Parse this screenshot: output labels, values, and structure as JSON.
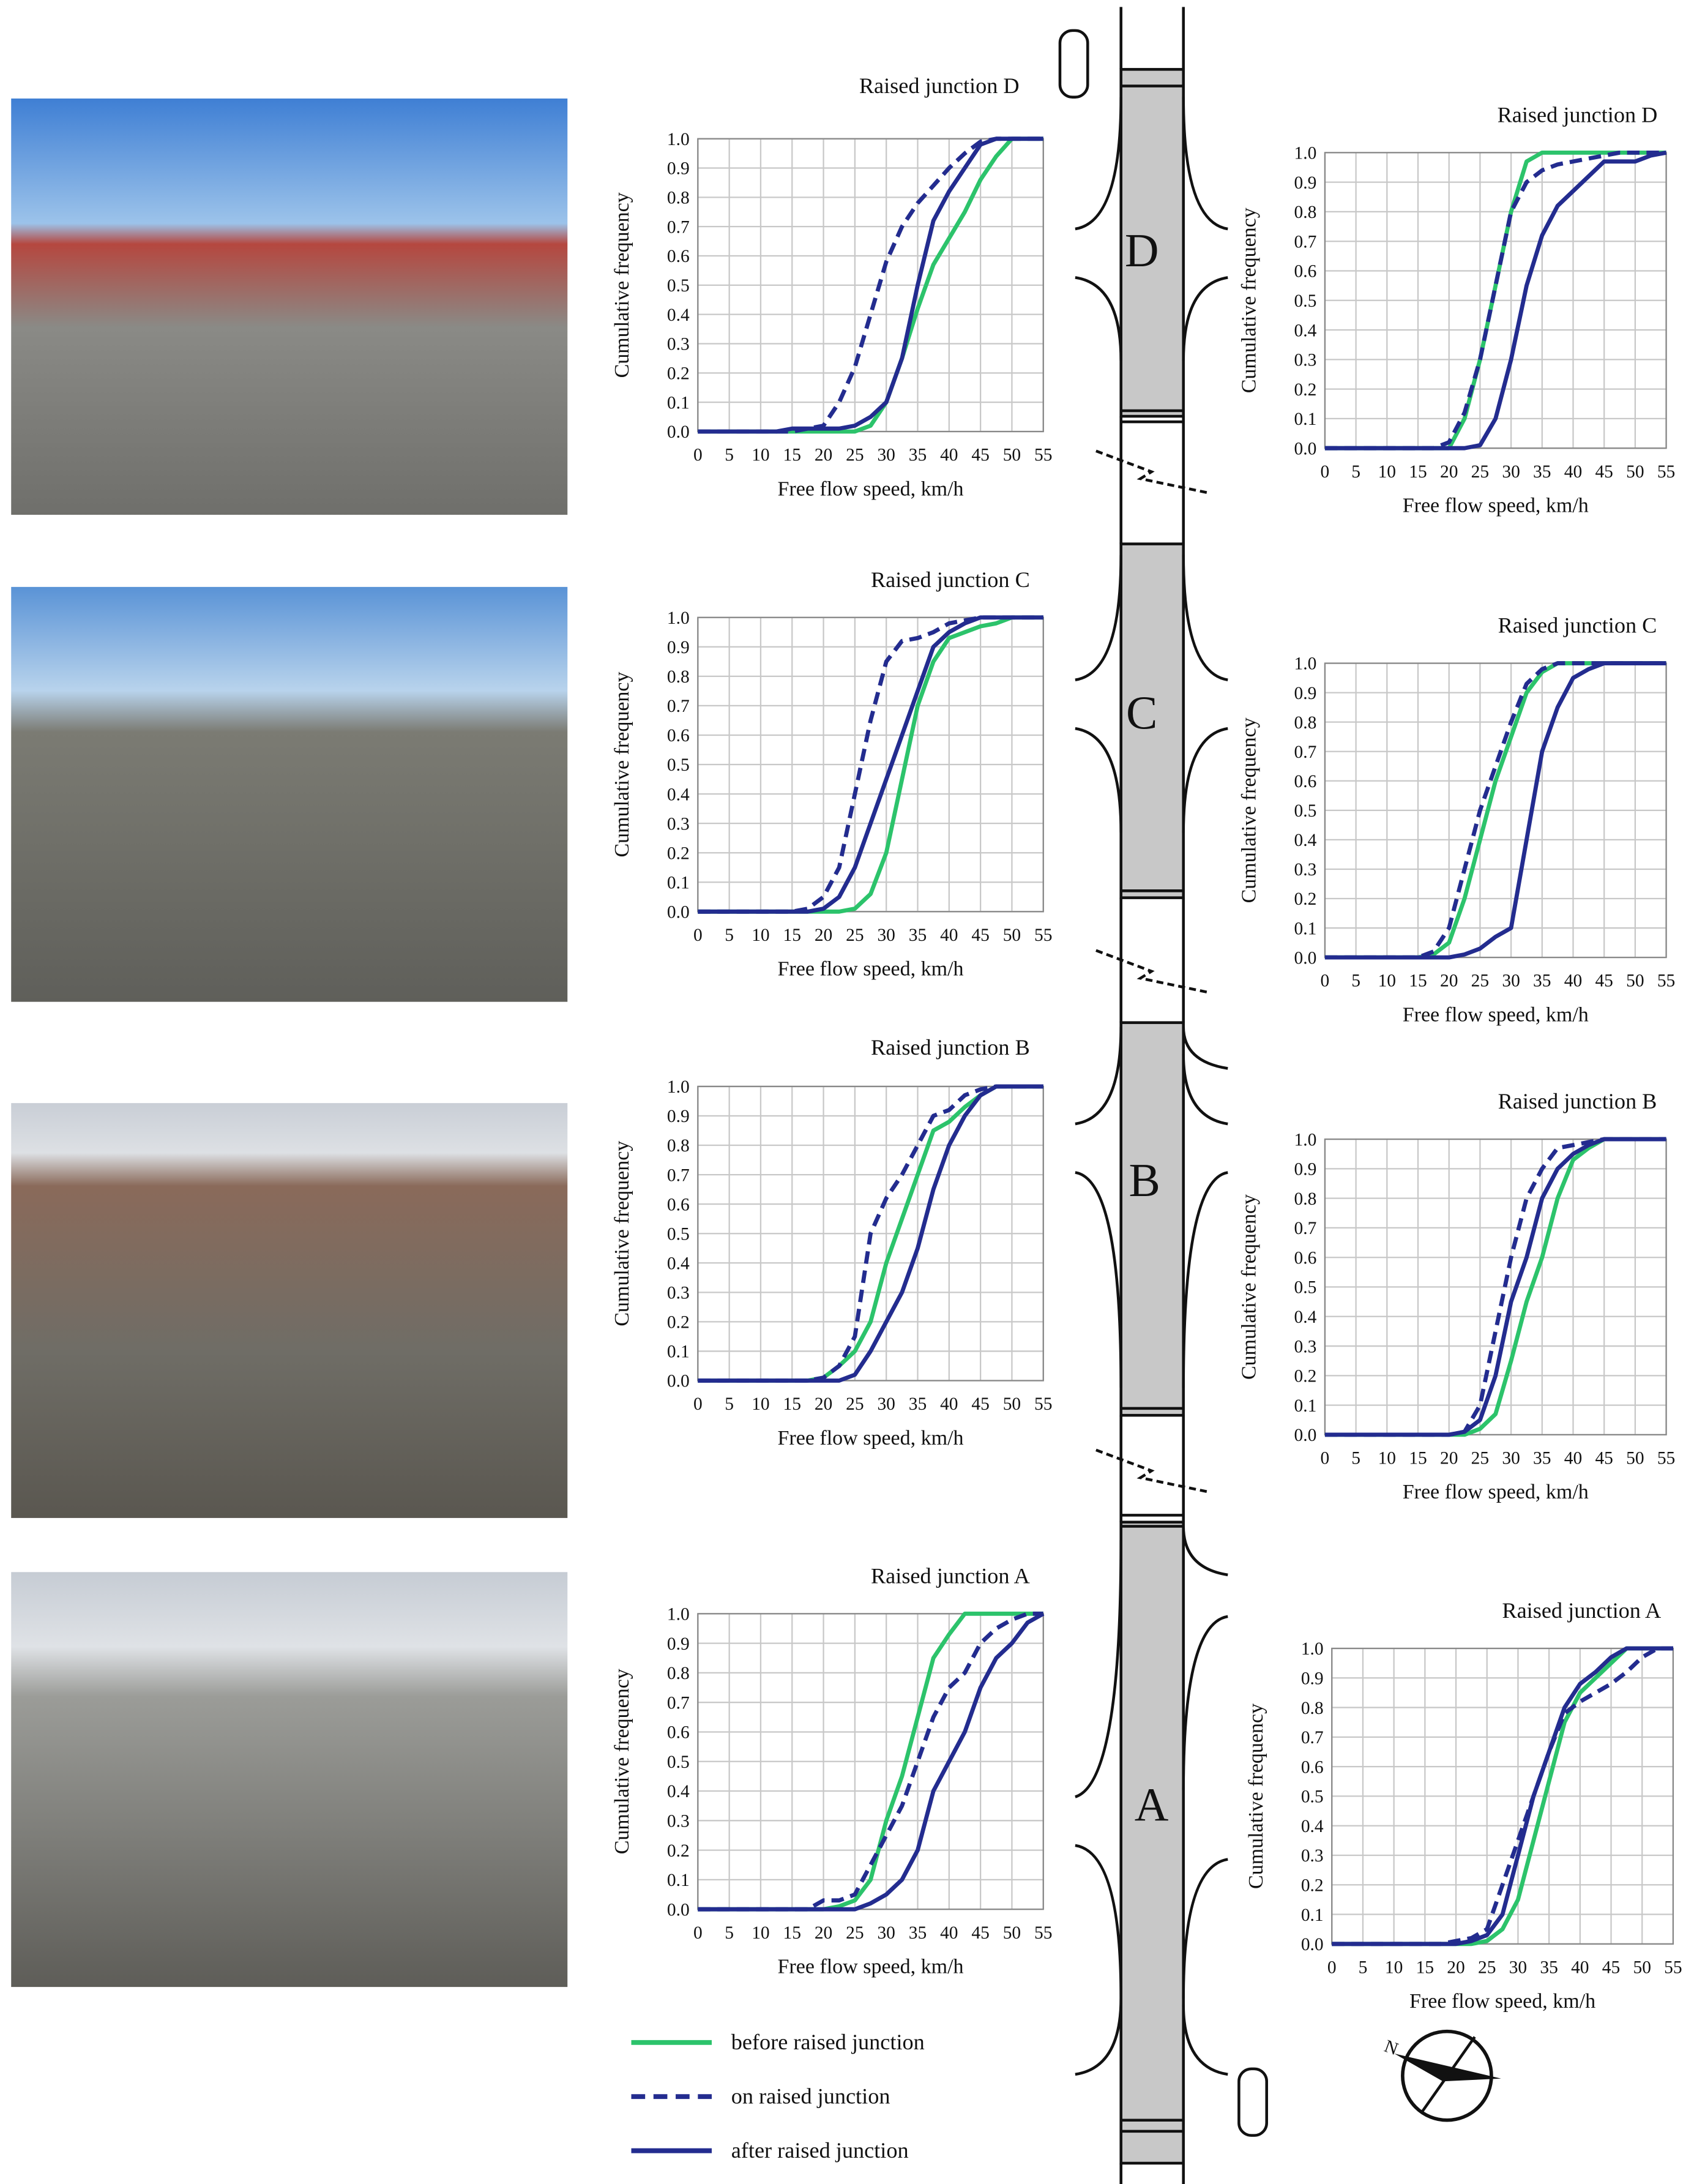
{
  "legend": {
    "entries": [
      {
        "name": "before raised junction",
        "color": "#2cc36b",
        "dash": false
      },
      {
        "name": "on raised junction",
        "color": "#232c8f",
        "dash": true
      },
      {
        "name": "after raised junction",
        "color": "#232c8f",
        "dash": false
      }
    ]
  },
  "road": {
    "sections": [
      "D",
      "C",
      "B",
      "A"
    ]
  },
  "compass": {
    "label": "N"
  },
  "chart_data": [
    {
      "type": "line",
      "title": "Raised junction D",
      "xlabel": "Free flow speed, km/h",
      "ylabel": "Cumulative frequency",
      "x": [
        0,
        2.5,
        5,
        7.5,
        10,
        12.5,
        15,
        17.5,
        20,
        22.5,
        25,
        27.5,
        30,
        32.5,
        35,
        37.5,
        40,
        42.5,
        45,
        47.5,
        50,
        52.5,
        55
      ],
      "series": [
        {
          "values": [
            0,
            0,
            0,
            0,
            0,
            0,
            0,
            0,
            0,
            0,
            0,
            0.02,
            0.1,
            0.25,
            0.42,
            0.57,
            0.66,
            0.75,
            0.86,
            0.94,
            1,
            1,
            1
          ]
        },
        {
          "values": [
            0,
            0,
            0,
            0,
            0,
            0,
            0,
            0.01,
            0.02,
            0.1,
            0.22,
            0.4,
            0.58,
            0.7,
            0.78,
            0.84,
            0.9,
            0.95,
            0.99,
            1,
            1,
            1,
            1
          ]
        },
        {
          "values": [
            0,
            0,
            0,
            0,
            0,
            0,
            0.01,
            0.01,
            0.01,
            0.01,
            0.02,
            0.05,
            0.1,
            0.25,
            0.5,
            0.72,
            0.82,
            0.9,
            0.98,
            1,
            1,
            1,
            1
          ]
        }
      ],
      "xlim": [
        0,
        55
      ],
      "ylim": [
        0,
        1
      ],
      "xticks": [
        0,
        5,
        10,
        15,
        20,
        25,
        30,
        35,
        40,
        45,
        50,
        55
      ],
      "yticks": [
        {
          "value": 0,
          "label": "0.0"
        },
        0.1,
        0.2,
        0.3,
        0.4,
        0.5,
        0.6,
        0.7,
        0.8,
        0.9,
        {
          "value": 1,
          "label": "1.0"
        }
      ],
      "grid": true
    },
    {
      "type": "line",
      "title": "Raised junction D",
      "xlabel": "Free flow speed, km/h",
      "ylabel": "Cumulative frequency",
      "x": [
        0,
        2.5,
        5,
        7.5,
        10,
        12.5,
        15,
        17.5,
        20,
        22.5,
        25,
        27.5,
        30,
        32.5,
        35,
        37.5,
        40,
        42.5,
        45,
        47.5,
        50,
        52.5,
        55
      ],
      "series": [
        {
          "values": [
            0,
            0,
            0,
            0,
            0,
            0,
            0,
            0,
            0,
            0.1,
            0.3,
            0.55,
            0.8,
            0.97,
            1,
            1,
            1,
            1,
            1,
            1,
            1,
            1,
            1
          ]
        },
        {
          "values": [
            0,
            0,
            0,
            0,
            0,
            0,
            0,
            0,
            0.02,
            0.12,
            0.3,
            0.55,
            0.8,
            0.9,
            0.94,
            0.96,
            0.97,
            0.98,
            0.99,
            1,
            1,
            1,
            1
          ]
        },
        {
          "values": [
            0,
            0,
            0,
            0,
            0,
            0,
            0,
            0,
            0,
            0,
            0.01,
            0.1,
            0.3,
            0.55,
            0.72,
            0.82,
            0.87,
            0.92,
            0.97,
            0.97,
            0.97,
            0.99,
            1
          ]
        }
      ],
      "xlim": [
        0,
        55
      ],
      "ylim": [
        0,
        1
      ],
      "xticks": [
        0,
        5,
        10,
        15,
        20,
        25,
        30,
        35,
        40,
        45,
        50,
        55
      ],
      "yticks": [
        {
          "value": 0,
          "label": "0.0"
        },
        0.1,
        0.2,
        0.3,
        0.4,
        0.5,
        0.6,
        0.7,
        0.8,
        0.9,
        {
          "value": 1,
          "label": "1.0"
        }
      ],
      "grid": true
    },
    {
      "type": "line",
      "title": "Raised junction C",
      "xlabel": "Free flow speed, km/h",
      "ylabel": "Cumulative frequency",
      "x": [
        0,
        2.5,
        5,
        7.5,
        10,
        12.5,
        15,
        17.5,
        20,
        22.5,
        25,
        27.5,
        30,
        32.5,
        35,
        37.5,
        40,
        42.5,
        45,
        47.5,
        50,
        52.5,
        55
      ],
      "series": [
        {
          "values": [
            0,
            0,
            0,
            0,
            0,
            0,
            0,
            0,
            0,
            0,
            0.01,
            0.06,
            0.2,
            0.45,
            0.7,
            0.85,
            0.93,
            0.95,
            0.97,
            0.98,
            1,
            1,
            1
          ]
        },
        {
          "values": [
            0,
            0,
            0,
            0,
            0,
            0,
            0,
            0.01,
            0.05,
            0.15,
            0.4,
            0.65,
            0.85,
            0.92,
            0.93,
            0.95,
            0.98,
            0.99,
            1,
            1,
            1,
            1,
            1
          ]
        },
        {
          "values": [
            0,
            0,
            0,
            0,
            0,
            0,
            0,
            0,
            0.01,
            0.05,
            0.15,
            0.3,
            0.45,
            0.6,
            0.75,
            0.9,
            0.95,
            0.98,
            1,
            1,
            1,
            1,
            1
          ]
        }
      ],
      "xlim": [
        0,
        55
      ],
      "ylim": [
        0,
        1
      ],
      "xticks": [
        0,
        5,
        10,
        15,
        20,
        25,
        30,
        35,
        40,
        45,
        50,
        55
      ],
      "yticks": [
        {
          "value": 0,
          "label": "0.0"
        },
        0.1,
        0.2,
        0.3,
        0.4,
        0.5,
        0.6,
        0.7,
        0.8,
        0.9,
        {
          "value": 1,
          "label": "1.0"
        }
      ],
      "grid": true
    },
    {
      "type": "line",
      "title": "Raised junction C",
      "xlabel": "Free flow speed, km/h",
      "ylabel": "Cumulative frequency",
      "x": [
        0,
        2.5,
        5,
        7.5,
        10,
        12.5,
        15,
        17.5,
        20,
        22.5,
        25,
        27.5,
        30,
        32.5,
        35,
        37.5,
        40,
        42.5,
        45,
        47.5,
        50,
        52.5,
        55
      ],
      "series": [
        {
          "values": [
            0,
            0,
            0,
            0,
            0,
            0,
            0,
            0.01,
            0.05,
            0.2,
            0.4,
            0.6,
            0.75,
            0.9,
            0.97,
            1,
            1,
            1,
            1,
            1,
            1,
            1,
            1
          ]
        },
        {
          "values": [
            0,
            0,
            0,
            0,
            0,
            0,
            0,
            0.02,
            0.1,
            0.3,
            0.5,
            0.65,
            0.8,
            0.93,
            0.98,
            1,
            1,
            1,
            1,
            1,
            1,
            1,
            1
          ]
        },
        {
          "values": [
            0,
            0,
            0,
            0,
            0,
            0,
            0,
            0,
            0,
            0.01,
            0.03,
            0.07,
            0.1,
            0.4,
            0.7,
            0.85,
            0.95,
            0.98,
            1,
            1,
            1,
            1,
            1
          ]
        }
      ],
      "xlim": [
        0,
        55
      ],
      "ylim": [
        0,
        1
      ],
      "xticks": [
        0,
        5,
        10,
        15,
        20,
        25,
        30,
        35,
        40,
        45,
        50,
        55
      ],
      "yticks": [
        {
          "value": 0,
          "label": "0.0"
        },
        0.1,
        0.2,
        0.3,
        0.4,
        0.5,
        0.6,
        0.7,
        0.8,
        0.9,
        {
          "value": 1,
          "label": "1.0"
        }
      ],
      "grid": true
    },
    {
      "type": "line",
      "title": "Raised junction B",
      "xlabel": "Free flow speed, km/h",
      "ylabel": "Cumulative frequency",
      "x": [
        0,
        2.5,
        5,
        7.5,
        10,
        12.5,
        15,
        17.5,
        20,
        22.5,
        25,
        27.5,
        30,
        32.5,
        35,
        37.5,
        40,
        42.5,
        45,
        47.5,
        50,
        52.5,
        55
      ],
      "series": [
        {
          "values": [
            0,
            0,
            0,
            0,
            0,
            0,
            0,
            0,
            0.01,
            0.05,
            0.1,
            0.2,
            0.4,
            0.55,
            0.7,
            0.85,
            0.88,
            0.93,
            0.97,
            1,
            1,
            1,
            1
          ]
        },
        {
          "values": [
            0,
            0,
            0,
            0,
            0,
            0,
            0,
            0,
            0.01,
            0.05,
            0.15,
            0.5,
            0.62,
            0.7,
            0.8,
            0.9,
            0.92,
            0.97,
            0.99,
            1,
            1,
            1,
            1
          ]
        },
        {
          "values": [
            0,
            0,
            0,
            0,
            0,
            0,
            0,
            0,
            0,
            0,
            0.02,
            0.1,
            0.2,
            0.3,
            0.45,
            0.65,
            0.8,
            0.9,
            0.97,
            1,
            1,
            1,
            1
          ]
        }
      ],
      "xlim": [
        0,
        55
      ],
      "ylim": [
        0,
        1
      ],
      "xticks": [
        0,
        5,
        10,
        15,
        20,
        25,
        30,
        35,
        40,
        45,
        50,
        55
      ],
      "yticks": [
        {
          "value": 0,
          "label": "0.0"
        },
        0.1,
        0.2,
        0.3,
        0.4,
        0.5,
        0.6,
        0.7,
        0.8,
        0.9,
        {
          "value": 1,
          "label": "1.0"
        }
      ],
      "grid": true
    },
    {
      "type": "line",
      "title": "Raised junction B",
      "xlabel": "Free flow speed, km/h",
      "ylabel": "Cumulative frequency",
      "x": [
        0,
        2.5,
        5,
        7.5,
        10,
        12.5,
        15,
        17.5,
        20,
        22.5,
        25,
        27.5,
        30,
        32.5,
        35,
        37.5,
        40,
        42.5,
        45,
        47.5,
        50,
        52.5,
        55
      ],
      "series": [
        {
          "values": [
            0,
            0,
            0,
            0,
            0,
            0,
            0,
            0,
            0,
            0,
            0.02,
            0.07,
            0.25,
            0.45,
            0.6,
            0.8,
            0.93,
            0.97,
            1,
            1,
            1,
            1,
            1
          ]
        },
        {
          "values": [
            0,
            0,
            0,
            0,
            0,
            0,
            0,
            0,
            0,
            0.01,
            0.1,
            0.35,
            0.6,
            0.8,
            0.9,
            0.97,
            0.98,
            0.99,
            1,
            1,
            1,
            1,
            1
          ]
        },
        {
          "values": [
            0,
            0,
            0,
            0,
            0,
            0,
            0,
            0,
            0,
            0.01,
            0.05,
            0.2,
            0.45,
            0.6,
            0.8,
            0.9,
            0.95,
            0.98,
            1,
            1,
            1,
            1,
            1
          ]
        }
      ],
      "xlim": [
        0,
        55
      ],
      "ylim": [
        0,
        1
      ],
      "xticks": [
        0,
        5,
        10,
        15,
        20,
        25,
        30,
        35,
        40,
        45,
        50,
        55
      ],
      "yticks": [
        {
          "value": 0,
          "label": "0.0"
        },
        0.1,
        0.2,
        0.3,
        0.4,
        0.5,
        0.6,
        0.7,
        0.8,
        0.9,
        {
          "value": 1,
          "label": "1.0"
        }
      ],
      "grid": true
    },
    {
      "type": "line",
      "title": "Raised junction A",
      "xlabel": "Free flow speed, km/h",
      "ylabel": "Cumulative frequency",
      "x": [
        0,
        2.5,
        5,
        7.5,
        10,
        12.5,
        15,
        17.5,
        20,
        22.5,
        25,
        27.5,
        30,
        32.5,
        35,
        37.5,
        40,
        42.5,
        45,
        47.5,
        50,
        52.5,
        55
      ],
      "series": [
        {
          "values": [
            0,
            0,
            0,
            0,
            0,
            0,
            0,
            0,
            0,
            0.01,
            0.03,
            0.1,
            0.3,
            0.45,
            0.65,
            0.85,
            0.93,
            1,
            1,
            1,
            1,
            1,
            1
          ]
        },
        {
          "values": [
            0,
            0,
            0,
            0,
            0,
            0,
            0,
            0,
            0.03,
            0.03,
            0.05,
            0.15,
            0.25,
            0.35,
            0.5,
            0.65,
            0.75,
            0.8,
            0.9,
            0.95,
            0.98,
            1,
            1
          ]
        },
        {
          "values": [
            0,
            0,
            0,
            0,
            0,
            0,
            0,
            0,
            0,
            0,
            0,
            0.02,
            0.05,
            0.1,
            0.2,
            0.4,
            0.5,
            0.6,
            0.75,
            0.85,
            0.9,
            0.97,
            1
          ]
        }
      ],
      "xlim": [
        0,
        55
      ],
      "ylim": [
        0,
        1
      ],
      "xticks": [
        0,
        5,
        10,
        15,
        20,
        25,
        30,
        35,
        40,
        45,
        50,
        55
      ],
      "yticks": [
        {
          "value": 0,
          "label": "0.0"
        },
        0.1,
        0.2,
        0.3,
        0.4,
        0.5,
        0.6,
        0.7,
        0.8,
        0.9,
        {
          "value": 1,
          "label": "1.0"
        }
      ],
      "grid": true
    },
    {
      "type": "line",
      "title": "Raised junction A",
      "xlabel": "Free flow speed, km/h",
      "ylabel": "Cumulative frequency",
      "x": [
        0,
        2.5,
        5,
        7.5,
        10,
        12.5,
        15,
        17.5,
        20,
        22.5,
        25,
        27.5,
        30,
        32.5,
        35,
        37.5,
        40,
        42.5,
        45,
        47.5,
        50,
        52.5,
        55
      ],
      "series": [
        {
          "values": [
            0,
            0,
            0,
            0,
            0,
            0,
            0,
            0,
            0,
            0,
            0.01,
            0.05,
            0.15,
            0.35,
            0.55,
            0.75,
            0.85,
            0.9,
            0.95,
            1,
            1,
            1,
            1
          ]
        },
        {
          "values": [
            0,
            0,
            0,
            0,
            0,
            0,
            0,
            0,
            0.01,
            0.02,
            0.05,
            0.2,
            0.35,
            0.5,
            0.65,
            0.78,
            0.82,
            0.85,
            0.88,
            0.92,
            0.97,
            1,
            1
          ]
        },
        {
          "values": [
            0,
            0,
            0,
            0,
            0,
            0,
            0,
            0,
            0,
            0.01,
            0.03,
            0.1,
            0.3,
            0.5,
            0.65,
            0.8,
            0.88,
            0.92,
            0.97,
            1,
            1,
            1,
            1
          ]
        }
      ],
      "xlim": [
        0,
        55
      ],
      "ylim": [
        0,
        1
      ],
      "xticks": [
        0,
        5,
        10,
        15,
        20,
        25,
        30,
        35,
        40,
        45,
        50,
        55
      ],
      "yticks": [
        {
          "value": 0,
          "label": "0.0"
        },
        0.1,
        0.2,
        0.3,
        0.4,
        0.5,
        0.6,
        0.7,
        0.8,
        0.9,
        {
          "value": 1,
          "label": "1.0"
        }
      ],
      "grid": true
    }
  ]
}
